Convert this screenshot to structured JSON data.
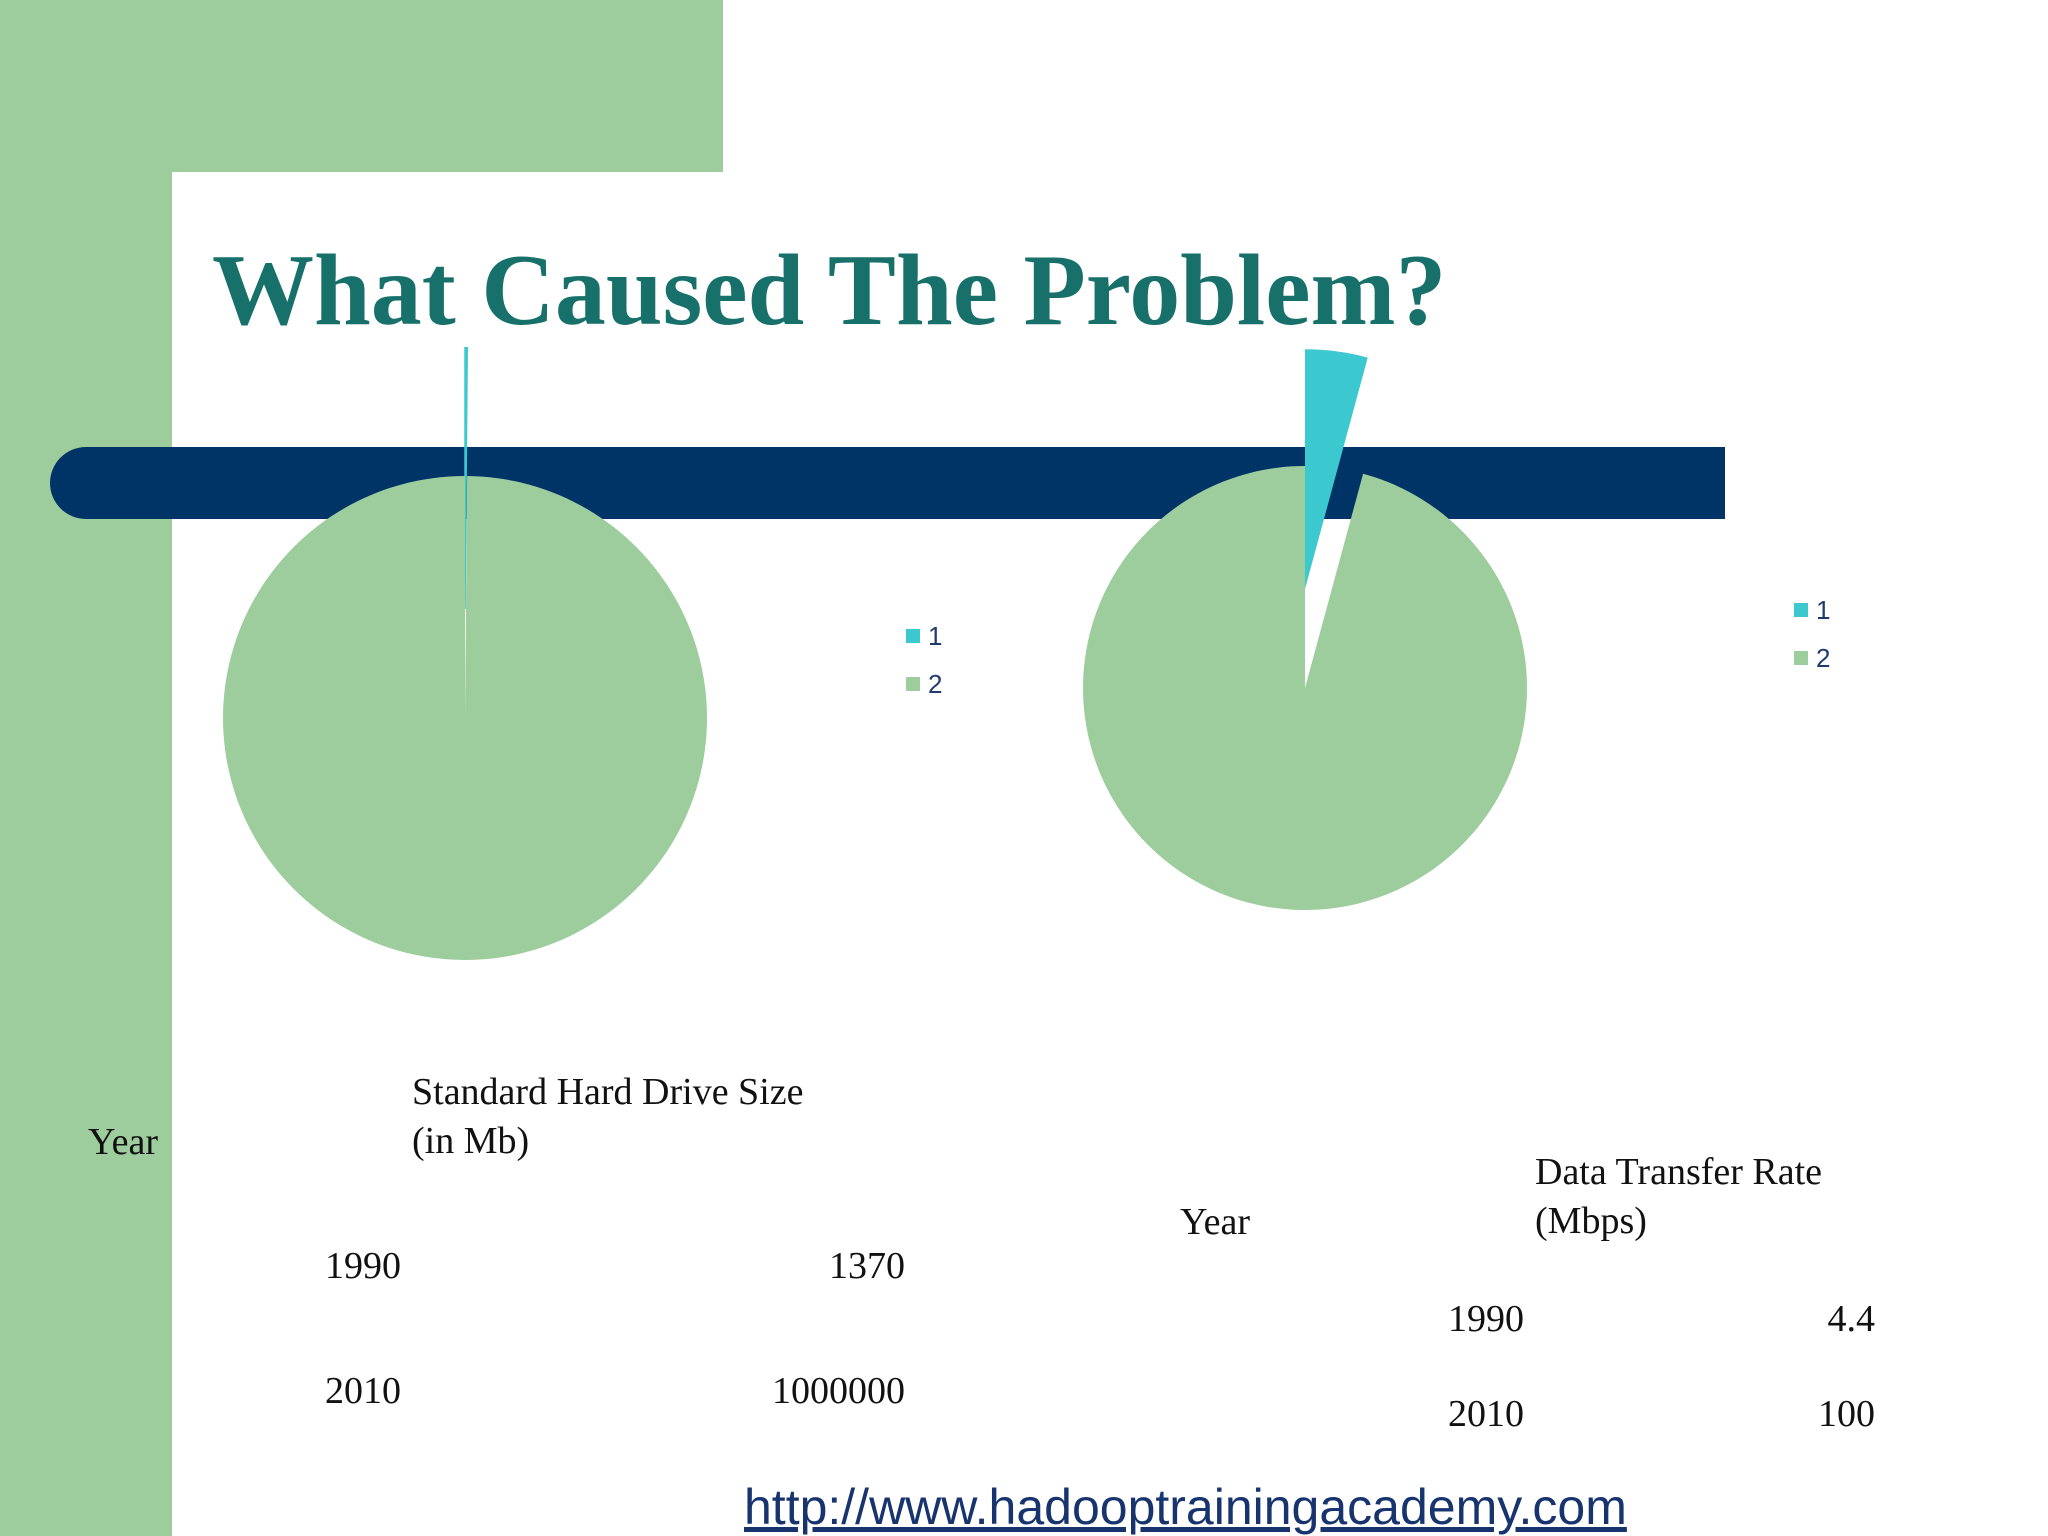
{
  "slide": {
    "title": "What Caused The Problem?",
    "url": "http://www.hadooptrainingacademy.com"
  },
  "colors": {
    "slice1": "#3cc8cf",
    "slice2": "#9dcd9d",
    "navy": "#003366",
    "title": "#17706a"
  },
  "chart_data": [
    {
      "type": "pie",
      "title": "",
      "legend": "right",
      "categories": [
        "1",
        "2"
      ],
      "values": [
        1370,
        1000000
      ],
      "exploded": [
        true,
        false
      ]
    },
    {
      "type": "pie",
      "title": "",
      "legend": "right",
      "categories": [
        "1",
        "2"
      ],
      "values": [
        4.4,
        100
      ],
      "exploded": [
        true,
        false
      ]
    }
  ],
  "table1": {
    "header_year": "Year",
    "header_value_line1": "Standard Hard Drive Size",
    "header_value_line2": "(in Mb)",
    "rows": [
      {
        "year": "1990",
        "value": "1370"
      },
      {
        "year": "2010",
        "value": "1000000"
      }
    ]
  },
  "table2": {
    "header_year": "Year",
    "header_value_line1": "Data Transfer Rate",
    "header_value_line2": "(Mbps)",
    "rows": [
      {
        "year": "1990",
        "value": "4.4"
      },
      {
        "year": "2010",
        "value": "100"
      }
    ]
  }
}
